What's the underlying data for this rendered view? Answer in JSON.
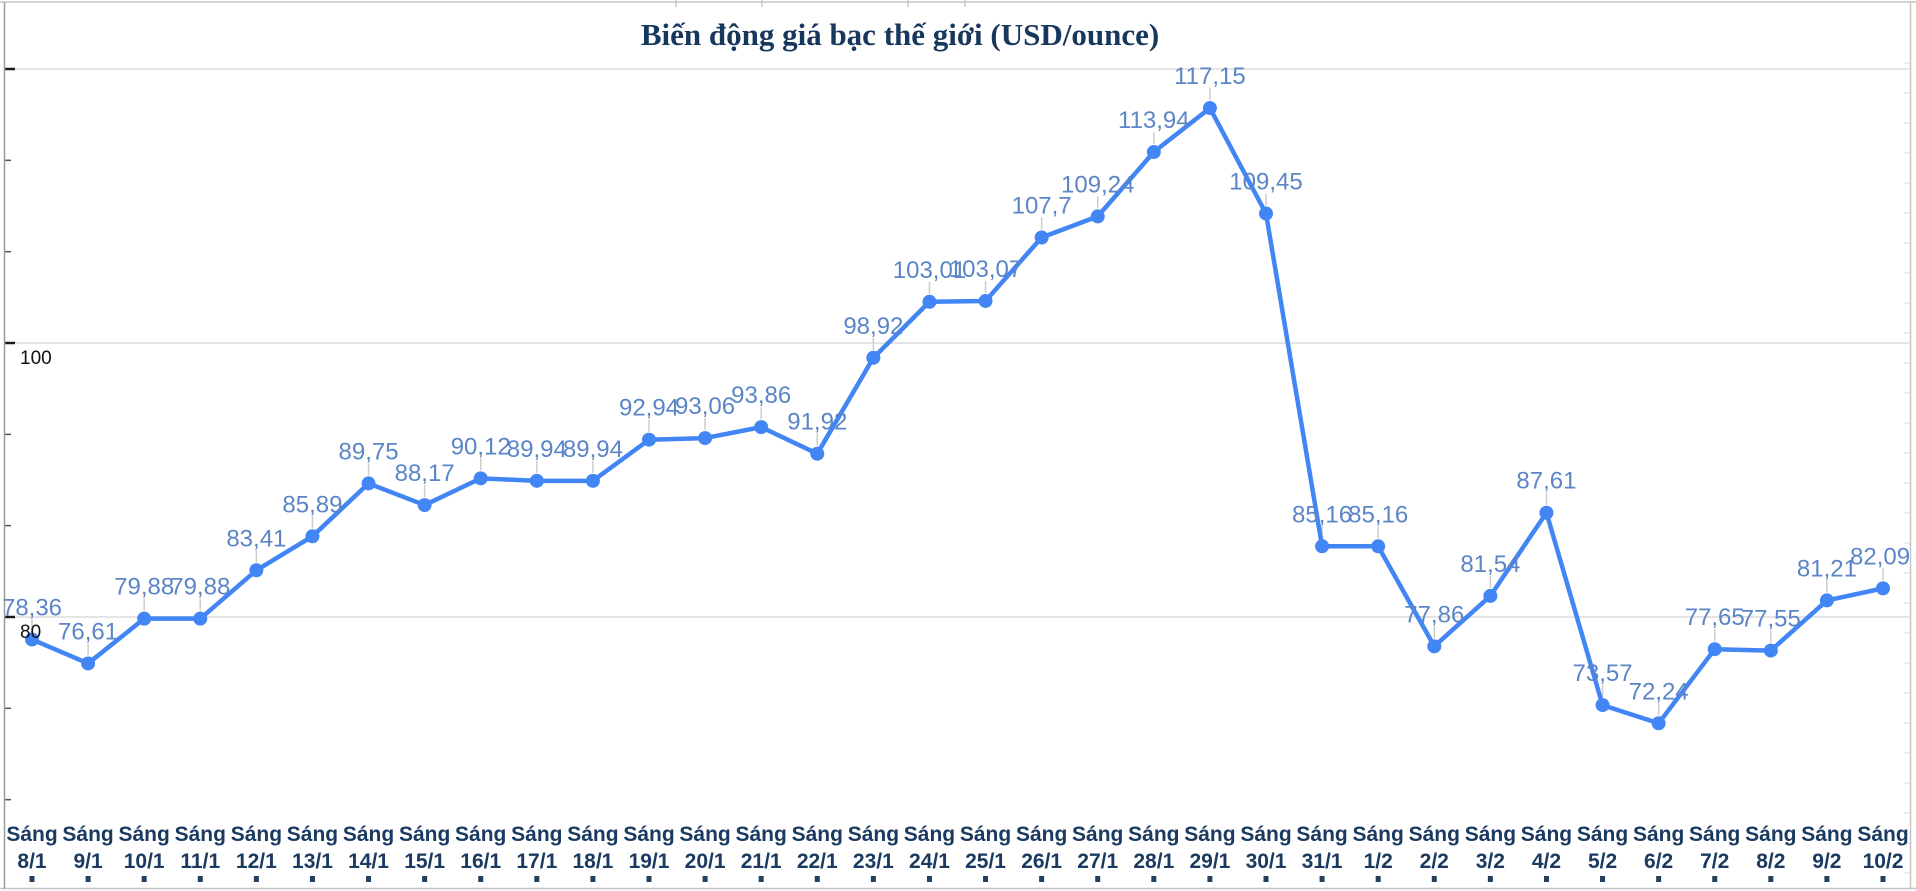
{
  "chart_data": {
    "type": "line",
    "title": "Biến động giá bạc thế giới (USD/ounce)",
    "x_tick_prefix": "Sáng",
    "categories": [
      "8/1",
      "9/1",
      "10/1",
      "11/1",
      "12/1",
      "13/1",
      "14/1",
      "15/1",
      "16/1",
      "17/1",
      "18/1",
      "19/1",
      "20/1",
      "21/1",
      "22/1",
      "23/1",
      "24/1",
      "25/1",
      "26/1",
      "27/1",
      "28/1",
      "29/1",
      "30/1",
      "31/1",
      "1/2",
      "2/2",
      "3/2",
      "4/2",
      "5/2",
      "6/2",
      "7/2",
      "8/2",
      "9/2",
      "10/2"
    ],
    "values": [
      78.36,
      76.61,
      79.88,
      79.88,
      83.41,
      85.89,
      89.75,
      88.17,
      90.12,
      89.94,
      89.94,
      92.94,
      93.06,
      93.86,
      91.92,
      98.92,
      103.01,
      103.07,
      107.7,
      109.24,
      113.94,
      117.15,
      109.45,
      85.16,
      85.16,
      77.86,
      81.54,
      87.61,
      73.57,
      72.24,
      77.65,
      77.55,
      81.21,
      82.09
    ],
    "point_labels": [
      "78,36",
      "76,61",
      "79,88",
      "79,88",
      "83,41",
      "85,89",
      "89,75",
      "88,17",
      "90,12",
      "89,94",
      "89,94",
      "92,94",
      "93,06",
      "93,86",
      "91,92",
      "98,92",
      "103,01",
      "103,07",
      "107,7",
      "109,24",
      "113,94",
      "117,15",
      "109,45",
      "85,16",
      "85,16",
      "77,86",
      "81,54",
      "87,61",
      "73,57",
      "72,24",
      "77,65",
      "77,55",
      "81,21",
      "82,09"
    ],
    "xlabel": "",
    "ylabel": "",
    "y_axis": {
      "labeled_ticks": [
        100,
        80
      ],
      "labeled_tick_texts": [
        "100",
        "80"
      ],
      "gridlines_at": [
        120,
        100,
        80
      ],
      "minor_ticks_per_major": 2
    },
    "legend": "none",
    "grid": true,
    "colors": {
      "series_line": "#4285f4",
      "point_marker": "#4285f4",
      "point_label": "#5b85c6",
      "title_text": "#17375d",
      "x_label_text": "#1b3a60",
      "y_label_text": "#111111",
      "gridline": "#e4e4e4"
    }
  }
}
